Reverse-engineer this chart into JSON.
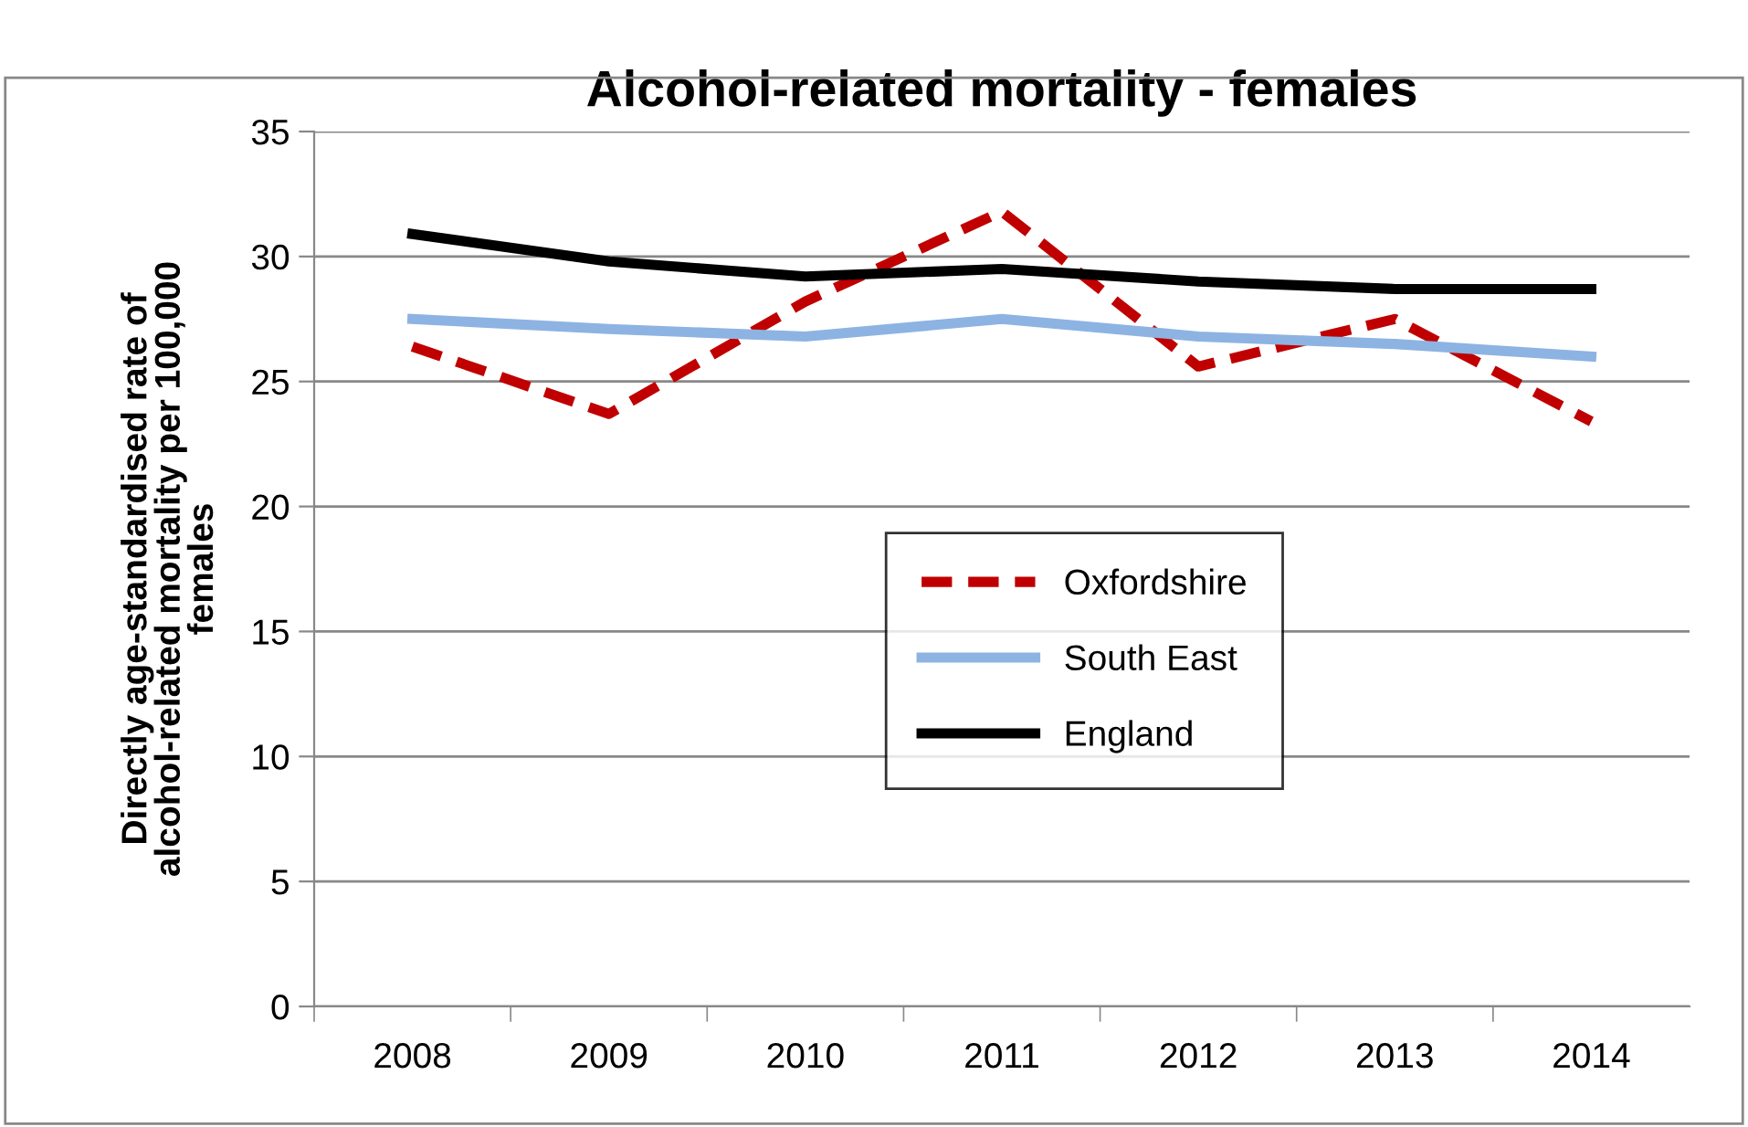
{
  "chart_data": {
    "type": "line",
    "title": "Alcohol-related mortality - females",
    "ylabel": "Directly age-standardised rate of\nalcohol-related mortality per 100,000\nfemales",
    "categories": [
      "2008",
      "2009",
      "2010",
      "2011",
      "2012",
      "2013",
      "2014"
    ],
    "series": [
      {
        "name": "Oxfordshire",
        "color": "#c00000",
        "line_style": "dashed",
        "values": [
          26.4,
          23.7,
          28.2,
          31.8,
          25.6,
          27.5,
          23.4
        ]
      },
      {
        "name": "South East",
        "color": "#8db3e2",
        "line_style": "solid",
        "values": [
          27.5,
          27.1,
          26.8,
          27.5,
          26.8,
          26.5,
          26.0
        ]
      },
      {
        "name": "England",
        "color": "#000000",
        "line_style": "solid",
        "values": [
          30.9,
          29.8,
          29.2,
          29.5,
          29.0,
          28.7,
          28.7
        ]
      }
    ],
    "ylim": [
      0,
      35
    ],
    "yticks": [
      0,
      5,
      10,
      15,
      20,
      25,
      30,
      35
    ],
    "grid": "y",
    "legend": "center",
    "marker": "none"
  }
}
